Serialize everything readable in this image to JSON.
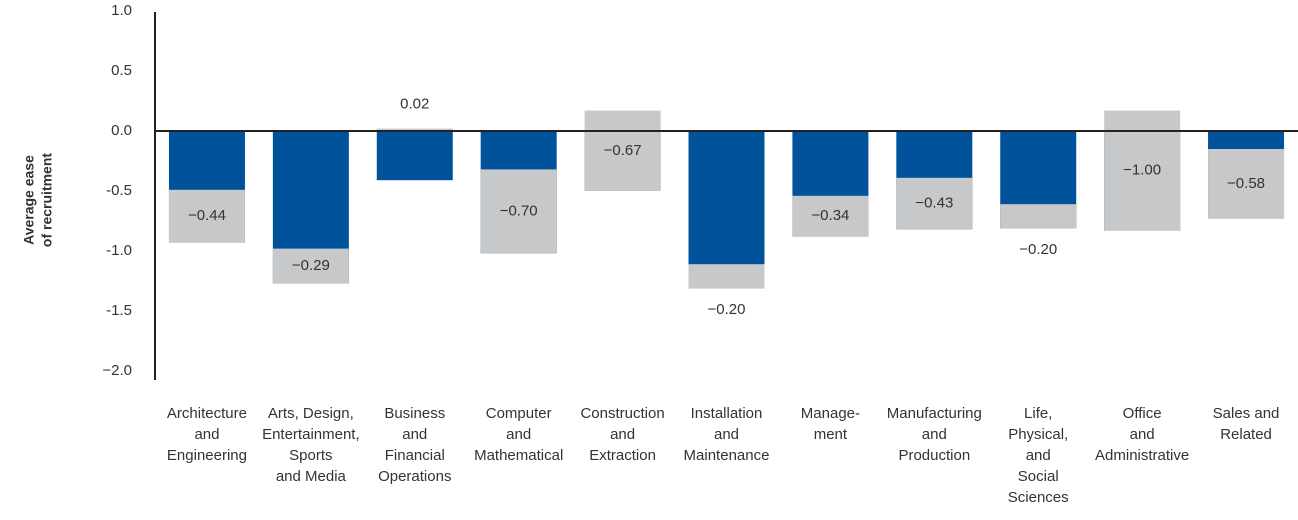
{
  "chart_data": {
    "type": "bar",
    "ylabel": [
      "Average ease",
      "of recruitment"
    ],
    "categories": [
      [
        "Architecture",
        "and",
        "Engineering"
      ],
      [
        "Arts, Design,",
        "Entertainment,",
        "Sports",
        "and Media"
      ],
      [
        "Business",
        "and",
        "Financial",
        "Operations"
      ],
      [
        "Computer",
        "and",
        "Mathematical"
      ],
      [
        "Construction",
        "and",
        "Extraction"
      ],
      [
        "Installation",
        "and",
        "Maintenance"
      ],
      [
        "Manage-",
        "ment"
      ],
      [
        "Manufacturing",
        "and",
        "Production"
      ],
      [
        "Life,",
        "Physical,",
        "and",
        "Social",
        "Sciences"
      ],
      [
        "Office",
        "and",
        "Administrative"
      ],
      [
        "Sales and",
        "Related"
      ]
    ],
    "series": [
      {
        "color": "#00539b",
        "values": [
          -0.93,
          -1.27,
          -0.41,
          -1.02,
          -0.5,
          -1.31,
          -0.88,
          -0.82,
          -0.81,
          -0.83,
          -0.73
        ]
      },
      {
        "color": "#c7c8ca",
        "values": [
          -0.44,
          -0.29,
          0.02,
          -0.7,
          -0.67,
          -0.2,
          -0.34,
          -0.43,
          -0.2,
          -1.0,
          -0.58
        ],
        "value_labels": [
          "−0.44",
          "−0.29",
          "0.02",
          "−0.70",
          "−0.67",
          "−0.20",
          "−0.34",
          "−0.43",
          "−0.20",
          "−1.00",
          "−0.58"
        ]
      }
    ],
    "ylim": [
      -2.0,
      1.0
    ],
    "yticks": [
      {
        "value": 1.0,
        "label": "1.0"
      },
      {
        "value": 0.5,
        "label": "0.5"
      },
      {
        "value": 0.0,
        "label": "0.0"
      },
      {
        "value": -0.5,
        "label": "-0.5"
      },
      {
        "value": -1.0,
        "label": "-1.0"
      },
      {
        "value": -1.5,
        "label": "-1.5"
      },
      {
        "value": -2.0,
        "label": "−2.0"
      }
    ]
  }
}
